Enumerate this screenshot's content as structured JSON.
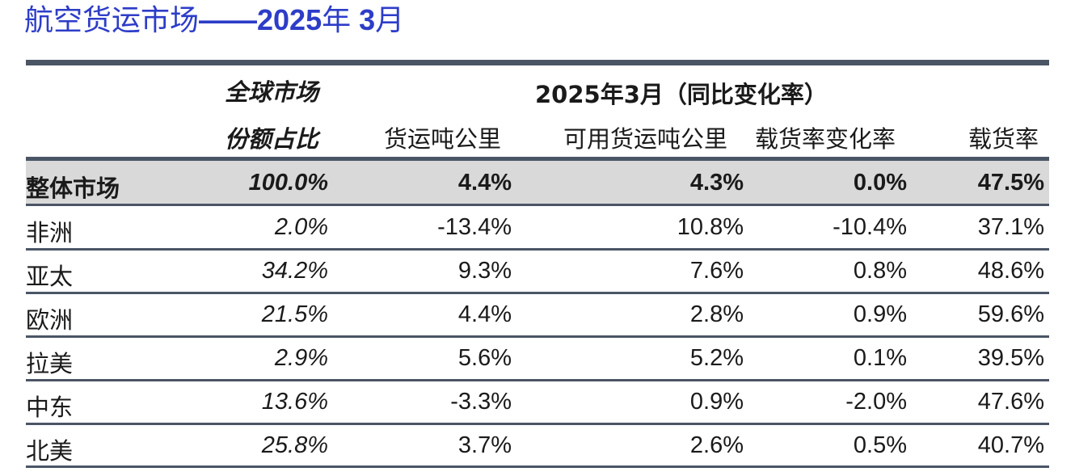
{
  "title": {
    "prefix": "航空货运市场",
    "suffix": "——2025",
    "year_char": "年",
    "month": " 3",
    "month_char": "月"
  },
  "table": {
    "header": {
      "share_line1": "全球市场",
      "share_line2": "份额占比",
      "group_title": "2025年3月（同比变化率）",
      "columns": [
        "货运吨公里",
        "可用货运吨公里",
        "载货率变化率",
        "载货率"
      ]
    },
    "total": {
      "region": "整体市场",
      "share": "100.0%",
      "ctk": "4.4%",
      "actk": "4.3%",
      "lf_change": "0.0%",
      "lf": "47.5%"
    },
    "rows": [
      {
        "region": "非洲",
        "share": "2.0%",
        "ctk": "-13.4%",
        "actk": "10.8%",
        "lf_change": "-10.4%",
        "lf": "37.1%"
      },
      {
        "region": "亚太",
        "share": "34.2%",
        "ctk": "9.3%",
        "actk": "7.6%",
        "lf_change": "0.8%",
        "lf": "48.6%"
      },
      {
        "region": "欧洲",
        "share": "21.5%",
        "ctk": "4.4%",
        "actk": "2.8%",
        "lf_change": "0.9%",
        "lf": "59.6%"
      },
      {
        "region": "拉美",
        "share": "2.9%",
        "ctk": "5.6%",
        "actk": "5.2%",
        "lf_change": "0.1%",
        "lf": "39.5%"
      },
      {
        "region": "中东",
        "share": "13.6%",
        "ctk": "-3.3%",
        "actk": "0.9%",
        "lf_change": "-2.0%",
        "lf": "47.6%"
      },
      {
        "region": "北美",
        "share": "25.8%",
        "ctk": "3.7%",
        "actk": "2.6%",
        "lf_change": "0.5%",
        "lf": "40.7%"
      }
    ]
  },
  "colors": {
    "title": "#2d3dc8",
    "rule": "#4a5566",
    "total_row_bg": "#d9d9d9"
  }
}
